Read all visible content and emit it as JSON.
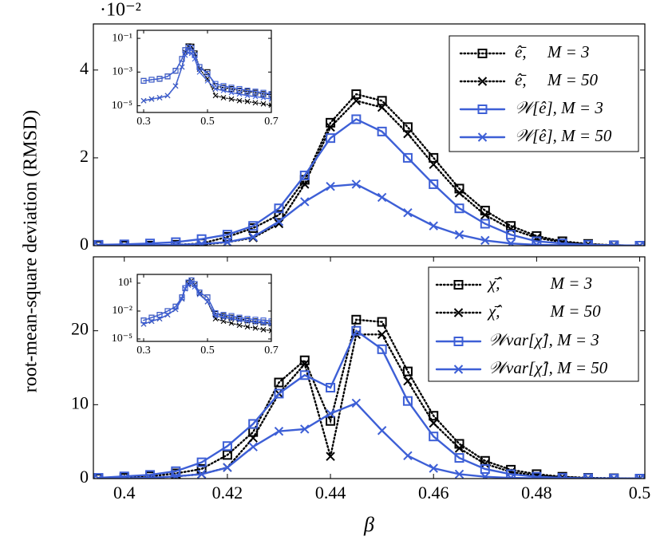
{
  "chart_data": [
    {
      "type": "line",
      "ylabel": "root-mean-square deviation (RMSD)",
      "y_offset_label": "·10⁻²",
      "legend": "upper right",
      "x": [
        0.395,
        0.4,
        0.405,
        0.41,
        0.415,
        0.42,
        0.425,
        0.43,
        0.435,
        0.44,
        0.445,
        0.45,
        0.455,
        0.46,
        0.465,
        0.47,
        0.475,
        0.48,
        0.485,
        0.49,
        0.495,
        0.5
      ],
      "xlim": [
        0.394,
        0.501
      ],
      "ylim": [
        0,
        5.05
      ],
      "yticks": [
        0,
        2,
        4
      ],
      "series": [
        {
          "name": "ê̄,     M = 3",
          "color": "#000000",
          "dash": "dotted",
          "marker": "square",
          "values": [
            0,
            0,
            0,
            0.02,
            0.05,
            0.2,
            0.4,
            0.7,
            1.5,
            2.8,
            3.45,
            3.3,
            2.7,
            2.0,
            1.3,
            0.8,
            0.45,
            0.22,
            0.1,
            0.04,
            0.01,
            0
          ]
        },
        {
          "name": "ê̄,     M = 50",
          "color": "#000000",
          "dash": "dotted",
          "marker": "x",
          "values": [
            0,
            0,
            0,
            0.01,
            0.02,
            0.08,
            0.18,
            0.5,
            1.4,
            2.7,
            3.3,
            3.15,
            2.55,
            1.85,
            1.2,
            0.7,
            0.38,
            0.18,
            0.08,
            0.03,
            0.01,
            0
          ]
        },
        {
          "name": "𝒲[ê], M = 3",
          "color": "#3d5fd6",
          "dash": "solid",
          "marker": "square",
          "values": [
            0.02,
            0.03,
            0.05,
            0.08,
            0.15,
            0.25,
            0.45,
            0.85,
            1.6,
            2.45,
            2.88,
            2.6,
            2.0,
            1.4,
            0.85,
            0.5,
            0.25,
            0.1,
            0.05,
            0.02,
            0.01,
            0
          ]
        },
        {
          "name": "𝒲[ê], M = 50",
          "color": "#3d5fd6",
          "dash": "solid",
          "marker": "x",
          "values": [
            0,
            0,
            0.01,
            0.02,
            0.04,
            0.08,
            0.2,
            0.55,
            1.0,
            1.35,
            1.4,
            1.1,
            0.75,
            0.45,
            0.25,
            0.12,
            0.05,
            0.02,
            0.01,
            0,
            0,
            0
          ]
        }
      ]
    },
    {
      "type": "line",
      "xlabel": "β",
      "legend": "upper right",
      "x": [
        0.395,
        0.4,
        0.405,
        0.41,
        0.415,
        0.42,
        0.425,
        0.43,
        0.435,
        0.44,
        0.445,
        0.45,
        0.455,
        0.46,
        0.465,
        0.47,
        0.475,
        0.48,
        0.485,
        0.49,
        0.495,
        0.5
      ],
      "xlim": [
        0.394,
        0.501
      ],
      "xticks": [
        0.4,
        0.42,
        0.44,
        0.46,
        0.48,
        0.5
      ],
      "ylim": [
        0,
        30
      ],
      "yticks": [
        0,
        10,
        20
      ],
      "series": [
        {
          "name": "χ̂̄,            M = 3",
          "color": "#000000",
          "dash": "dotted",
          "marker": "square",
          "values": [
            0,
            0.1,
            0.3,
            0.7,
            1.3,
            3.2,
            6.3,
            13,
            16,
            7.8,
            21.5,
            21.2,
            14.5,
            8.5,
            4.7,
            2.4,
            1.2,
            0.6,
            0.25,
            0.1,
            0.05,
            0
          ]
        },
        {
          "name": "χ̂̄,            M = 50",
          "color": "#000000",
          "dash": "dotted",
          "marker": "x",
          "values": [
            0,
            0.05,
            0.1,
            0.3,
            0.6,
            1.5,
            5.5,
            11.5,
            15.5,
            3,
            19.5,
            19.5,
            13.2,
            7.5,
            4.1,
            2,
            0.9,
            0.4,
            0.2,
            0.05,
            0.02,
            0
          ]
        },
        {
          "name": "𝒲var[χ̂], M = 3",
          "color": "#3d5fd6",
          "dash": "solid",
          "marker": "square",
          "values": [
            0.1,
            0.3,
            0.5,
            1,
            2.2,
            4.4,
            7.4,
            11.5,
            14,
            12.3,
            20,
            17.5,
            10.5,
            5.7,
            2.8,
            1.3,
            0.6,
            0.25,
            0.1,
            0.05,
            0.02,
            0
          ]
        },
        {
          "name": "𝒲var[χ̂], M = 50",
          "color": "#3d5fd6",
          "dash": "solid",
          "marker": "x",
          "values": [
            0,
            0.05,
            0.1,
            0.3,
            0.6,
            1.5,
            4.3,
            6.4,
            6.7,
            8.8,
            10.2,
            6.5,
            3.1,
            1.4,
            0.6,
            0.25,
            0.1,
            0.04,
            0.02,
            0,
            0,
            0
          ]
        }
      ]
    },
    {
      "type": "line",
      "log_y": true,
      "x": [
        0.3,
        0.325,
        0.35,
        0.375,
        0.4,
        0.42,
        0.43,
        0.44,
        0.45,
        0.46,
        0.475,
        0.5,
        0.525,
        0.55,
        0.575,
        0.6,
        0.625,
        0.65,
        0.675,
        0.7
      ],
      "xlim": [
        0.28,
        0.7
      ],
      "xticks": [
        0.3,
        0.5,
        0.7
      ],
      "ylim": [
        4e-06,
        0.3
      ],
      "yticks": [
        {
          "value": 1e-05,
          "label": "10⁻⁵"
        },
        {
          "value": 0.001,
          "label": "10⁻³"
        },
        {
          "value": 0.1,
          "label": "10⁻¹"
        }
      ],
      "series": [
        {
          "color": "#000000",
          "dash": "dotted",
          "marker": "square",
          "values": [
            0.0003,
            0.00035,
            0.0004,
            0.00055,
            0.0012,
            0.006,
            0.02,
            0.034,
            0.033,
            0.013,
            0.002,
            0.001,
            0.00015,
            0.00012,
            0.0001,
            8e-05,
            7e-05,
            6e-05,
            5e-05,
            4.5e-05
          ]
        },
        {
          "color": "#000000",
          "dash": "dotted",
          "marker": "x",
          "values": [
            2e-05,
            2.5e-05,
            3e-05,
            4e-05,
            0.00015,
            0.002,
            0.015,
            0.033,
            0.032,
            0.012,
            0.0015,
            0.0004,
            4e-05,
            3e-05,
            2.5e-05,
            2e-05,
            1.8e-05,
            1.5e-05,
            1.3e-05,
            1.1e-05
          ]
        },
        {
          "color": "#3d5fd6",
          "dash": "solid",
          "marker": "square",
          "values": [
            0.0003,
            0.00035,
            0.0004,
            0.00055,
            0.0012,
            0.006,
            0.02,
            0.029,
            0.026,
            0.01,
            0.002,
            0.0008,
            0.0002,
            0.00015,
            0.00012,
            0.0001,
            8e-05,
            7e-05,
            6e-05,
            5e-05
          ]
        },
        {
          "color": "#3d5fd6",
          "dash": "solid",
          "marker": "x",
          "values": [
            2e-05,
            2.5e-05,
            3e-05,
            4e-05,
            0.00015,
            0.002,
            0.01,
            0.014,
            0.013,
            0.006,
            0.001,
            0.0003,
            0.0001,
            8e-05,
            6e-05,
            5e-05,
            4e-05,
            3.5e-05,
            3e-05,
            2.5e-05
          ]
        }
      ]
    },
    {
      "type": "line",
      "log_y": true,
      "x": [
        0.3,
        0.325,
        0.35,
        0.375,
        0.4,
        0.42,
        0.43,
        0.44,
        0.45,
        0.46,
        0.475,
        0.5,
        0.525,
        0.55,
        0.575,
        0.6,
        0.625,
        0.65,
        0.675,
        0.7
      ],
      "xlim": [
        0.28,
        0.7
      ],
      "xticks": [
        0.3,
        0.5,
        0.7
      ],
      "ylim": [
        5.5e-06,
        87
      ],
      "yticks": [
        {
          "value": 1e-05,
          "label": "10⁻⁵"
        },
        {
          "value": 0.01,
          "label": "10⁻²"
        },
        {
          "value": 10,
          "label": "10¹"
        }
      ],
      "series": [
        {
          "color": "#000000",
          "dash": "dotted",
          "marker": "square",
          "values": [
            0.001,
            0.002,
            0.004,
            0.01,
            0.03,
            0.3,
            3,
            10,
            20,
            8,
            1,
            0.3,
            0.005,
            0.003,
            0.002,
            0.0015,
            0.001,
            0.0008,
            0.0006,
            0.0005
          ]
        },
        {
          "color": "#000000",
          "dash": "dotted",
          "marker": "x",
          "values": [
            0.0004,
            0.0008,
            0.0015,
            0.004,
            0.015,
            0.2,
            2.5,
            9,
            19,
            7,
            0.8,
            0.1,
            0.0015,
            0.0008,
            0.0005,
            0.0003,
            0.0002,
            0.00015,
            0.0001,
            8e-05
          ]
        },
        {
          "color": "#3d5fd6",
          "dash": "solid",
          "marker": "square",
          "values": [
            0.001,
            0.002,
            0.004,
            0.01,
            0.03,
            0.3,
            3,
            12,
            20,
            8,
            1,
            0.3,
            0.006,
            0.004,
            0.003,
            0.002,
            0.0015,
            0.0012,
            0.001,
            0.0008
          ]
        },
        {
          "color": "#3d5fd6",
          "dash": "solid",
          "marker": "x",
          "values": [
            0.0004,
            0.0008,
            0.0015,
            0.004,
            0.015,
            0.2,
            2.5,
            6,
            10,
            4,
            0.6,
            0.1,
            0.003,
            0.002,
            0.0015,
            0.001,
            0.0008,
            0.0006,
            0.0005,
            0.0004
          ]
        }
      ]
    }
  ]
}
